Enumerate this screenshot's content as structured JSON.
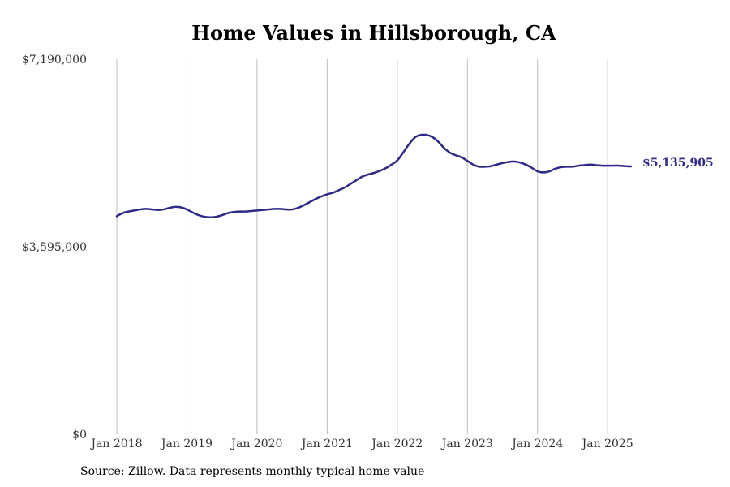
{
  "chart_data": {
    "type": "line",
    "title": "Home Values in Hillsborough, CA",
    "source": "Source: Zillow. Data represents monthly typical home value",
    "ylim": [
      0,
      7190000
    ],
    "y_ticks": [
      0,
      3595000,
      7190000
    ],
    "y_tick_labels": [
      "$0",
      "$3,595,000",
      "$7,190,000"
    ],
    "x_range": [
      "2018-01",
      "2025-05"
    ],
    "x_ticks": [
      "2018-01",
      "2019-01",
      "2020-01",
      "2021-01",
      "2022-01",
      "2023-01",
      "2024-01",
      "2025-01"
    ],
    "x_tick_labels": [
      "Jan 2018",
      "Jan 2019",
      "Jan 2020",
      "Jan 2021",
      "Jan 2022",
      "Jan 2023",
      "Jan 2024",
      "Jan 2025"
    ],
    "vertical_grid": true,
    "line_color": "#2e2a86",
    "end_label": "$5,135,905",
    "series": [
      {
        "x": [
          "2018-01",
          "2018-02",
          "2018-03",
          "2018-04",
          "2018-05",
          "2018-06",
          "2018-07",
          "2018-08",
          "2018-09",
          "2018-10",
          "2018-11",
          "2018-12",
          "2019-01",
          "2019-02",
          "2019-03",
          "2019-04",
          "2019-05",
          "2019-06",
          "2019-07",
          "2019-08",
          "2019-09",
          "2019-10",
          "2019-11",
          "2019-12",
          "2020-01",
          "2020-02",
          "2020-03",
          "2020-04",
          "2020-05",
          "2020-06",
          "2020-07",
          "2020-08",
          "2020-09",
          "2020-10",
          "2020-11",
          "2020-12",
          "2021-01",
          "2021-02",
          "2021-03",
          "2021-04",
          "2021-05",
          "2021-06",
          "2021-07",
          "2021-08",
          "2021-09",
          "2021-10",
          "2021-11",
          "2021-12",
          "2022-01",
          "2022-02",
          "2022-03",
          "2022-04",
          "2022-05",
          "2022-06",
          "2022-07",
          "2022-08",
          "2022-09",
          "2022-10",
          "2022-11",
          "2022-12",
          "2023-01",
          "2023-02",
          "2023-03",
          "2023-04",
          "2023-05",
          "2023-06",
          "2023-07",
          "2023-08",
          "2023-09",
          "2023-10",
          "2023-11",
          "2023-12",
          "2024-01",
          "2024-02",
          "2024-03",
          "2024-04",
          "2024-05",
          "2024-06",
          "2024-07",
          "2024-08",
          "2024-09",
          "2024-10",
          "2024-11",
          "2024-12",
          "2025-01",
          "2025-02",
          "2025-03",
          "2025-04",
          "2025-05"
        ],
        "values": [
          4180000,
          4240000,
          4270000,
          4290000,
          4310000,
          4320000,
          4310000,
          4300000,
          4310000,
          4340000,
          4360000,
          4350000,
          4310000,
          4250000,
          4200000,
          4170000,
          4160000,
          4170000,
          4200000,
          4240000,
          4260000,
          4270000,
          4270000,
          4280000,
          4290000,
          4300000,
          4310000,
          4320000,
          4320000,
          4310000,
          4310000,
          4340000,
          4390000,
          4450000,
          4510000,
          4560000,
          4600000,
          4630000,
          4680000,
          4730000,
          4800000,
          4870000,
          4940000,
          4980000,
          5010000,
          5050000,
          5100000,
          5170000,
          5250000,
          5400000,
          5560000,
          5690000,
          5740000,
          5740000,
          5700000,
          5610000,
          5490000,
          5400000,
          5350000,
          5310000,
          5240000,
          5170000,
          5130000,
          5130000,
          5140000,
          5170000,
          5200000,
          5220000,
          5230000,
          5210000,
          5170000,
          5110000,
          5040000,
          5020000,
          5040000,
          5090000,
          5120000,
          5130000,
          5130000,
          5150000,
          5160000,
          5170000,
          5160000,
          5150000,
          5150000,
          5150000,
          5150000,
          5140000,
          5135905
        ]
      }
    ]
  }
}
